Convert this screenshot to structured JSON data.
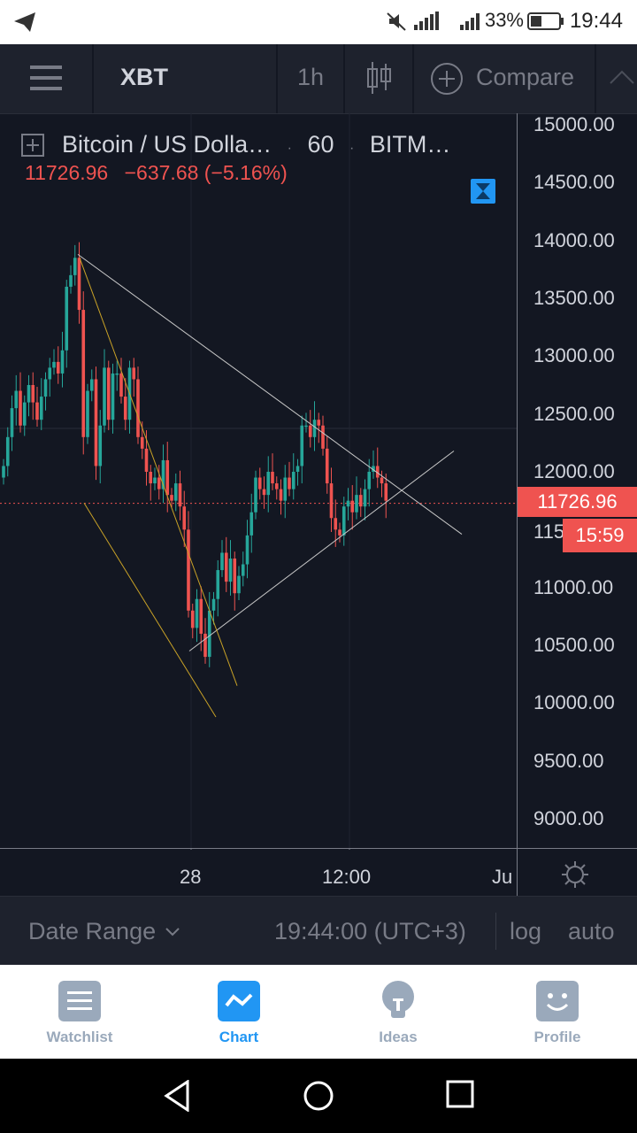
{
  "status_bar": {
    "battery_pct": "33%",
    "time": "19:44"
  },
  "toolbar": {
    "symbol": "XBT",
    "interval": "1h",
    "compare_label": "Compare"
  },
  "legend": {
    "title": "Bitcoin / US Dolla…",
    "interval": "60",
    "exchange": "BITM…",
    "last": "11726.96",
    "change": "−637.68 (−5.16%)"
  },
  "price_axis": {
    "labels": [
      "15000.00",
      "14500.00",
      "14000.00",
      "13500.00",
      "13000.00",
      "12500.00",
      "12000.00",
      "11000.00",
      "10500.00",
      "10000.00",
      "9500.00",
      "9000.00"
    ],
    "partial_label": "115",
    "current_price": "11726.96",
    "countdown": "15:59"
  },
  "time_axis": {
    "labels": [
      "28",
      "12:00",
      "Ju"
    ]
  },
  "bottom_bar": {
    "date_range": "Date Range",
    "timestamp": "19:44:00 (UTC+3)",
    "log": "log",
    "auto": "auto"
  },
  "tabs": [
    {
      "label": "Watchlist",
      "icon": "list-icon"
    },
    {
      "label": "Chart",
      "icon": "chart-icon"
    },
    {
      "label": "Ideas",
      "icon": "lightbulb-icon"
    },
    {
      "label": "Profile",
      "icon": "smiley-icon"
    }
  ],
  "colors": {
    "up": "#26a69a",
    "down": "#ef5350",
    "accent": "#2196f3",
    "background": "#131722"
  }
}
